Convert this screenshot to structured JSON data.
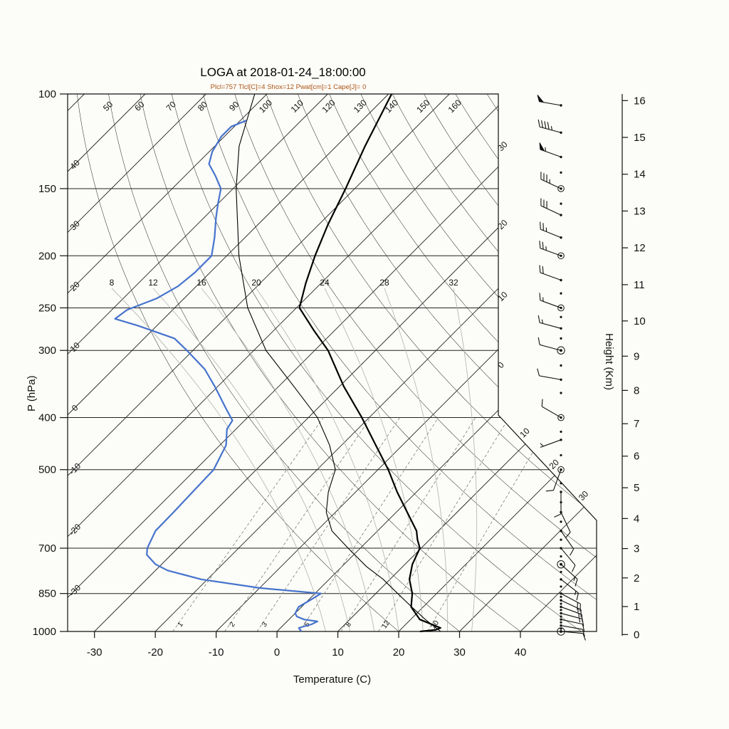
{
  "title": "LOGA at 2018-01-24_18:00:00",
  "subtitle": "Plcl=757 Tlcl[C]=4 Shox=12 Pwat[cm]=1 Cape[J]= 0",
  "colors": {
    "background": "#fcfcf8",
    "subtitle": "#ab5214",
    "temperature": "#000000",
    "dewpoint": "#4573cd",
    "parcel": "#000000",
    "isobar": "#222222",
    "isotherm": "#222222",
    "dry_adiabat": "#333333",
    "moist_adiabat": "#b8b8b8",
    "mixing_ratio": "#8a8a8a",
    "axis": "#111111"
  },
  "axes": {
    "pressure": {
      "label": "P (hPa)",
      "ticks": [
        100,
        150,
        200,
        250,
        300,
        400,
        500,
        700,
        850,
        1000
      ]
    },
    "temperature": {
      "label": "Temperature (C)",
      "ticks": [
        -30,
        -20,
        -10,
        0,
        10,
        20,
        30,
        40
      ]
    },
    "height": {
      "label": "Height (Km)",
      "ticks": [
        0,
        1,
        2,
        3,
        4,
        5,
        6,
        7,
        8,
        9,
        10,
        11,
        12,
        13,
        14,
        15,
        16
      ]
    }
  },
  "chart_data": {
    "type": "line",
    "chart_kind": "skew_t_log_p_sounding",
    "station": "LOGA",
    "valid_time": "2018-01-24_18:00:00",
    "indices": {
      "Plcl": 757,
      "Tlcl_C": 4,
      "Shox": 12,
      "Pwat_cm": 1,
      "Cape_J": 0
    },
    "x_axis": {
      "label": "Temperature (C)",
      "ticks": [
        -30,
        -20,
        -10,
        0,
        10,
        20,
        30,
        40
      ]
    },
    "y_axis": {
      "label": "P (hPa)",
      "scale": "log",
      "ticks": [
        100,
        150,
        200,
        250,
        300,
        400,
        500,
        700,
        850,
        1000
      ]
    },
    "height_axis_km": [
      0,
      1,
      2,
      3,
      4,
      5,
      6,
      7,
      8,
      9,
      10,
      11,
      12,
      13,
      14,
      15,
      16
    ],
    "background_labels": {
      "isotherms_left_c": [
        40,
        30,
        20,
        10,
        0,
        -10,
        -20,
        -30
      ],
      "isotherms_right_upper_c": [
        30,
        20,
        10,
        0
      ],
      "isotherms_right_lower_c": [
        10,
        20,
        30
      ],
      "dry_adiabats_top_c": [
        50,
        60,
        70,
        80,
        90,
        100,
        110,
        120,
        130,
        140,
        150,
        160
      ],
      "moist_adiabats_c": [
        8,
        12,
        16,
        20,
        24,
        28,
        32
      ],
      "mixing_ratio_gkg": [
        1,
        2,
        3,
        5,
        8,
        12,
        20
      ]
    },
    "series": [
      {
        "name": "temperature",
        "style": "thick_black",
        "points": [
          [
            1000,
            23.5
          ],
          [
            993,
            25.8
          ],
          [
            985,
            26.3
          ],
          [
            950,
            21.5
          ],
          [
            900,
            18
          ],
          [
            850,
            16
          ],
          [
            800,
            13.2
          ],
          [
            750,
            11.2
          ],
          [
            700,
            9.8
          ],
          [
            675,
            8
          ],
          [
            650,
            6.4
          ],
          [
            600,
            1.8
          ],
          [
            550,
            -3.2
          ],
          [
            500,
            -8.3
          ],
          [
            450,
            -14.4
          ],
          [
            400,
            -21.2
          ],
          [
            350,
            -29.3
          ],
          [
            300,
            -37.8
          ],
          [
            275,
            -43.5
          ],
          [
            250,
            -49.5
          ],
          [
            225,
            -52.5
          ],
          [
            200,
            -55.5
          ],
          [
            175,
            -58.5
          ],
          [
            150,
            -61.5
          ],
          [
            125,
            -65.3
          ],
          [
            100,
            -69.5
          ]
        ]
      },
      {
        "name": "dewpoint",
        "style": "thick_blue",
        "points": [
          [
            1000,
            4
          ],
          [
            985,
            3
          ],
          [
            970,
            4.5
          ],
          [
            958,
            5
          ],
          [
            950,
            2.5
          ],
          [
            938,
            0.8
          ],
          [
            925,
            0
          ],
          [
            900,
            -0.5
          ],
          [
            875,
            0.3
          ],
          [
            850,
            1
          ],
          [
            830,
            -10
          ],
          [
            800,
            -21
          ],
          [
            770,
            -28
          ],
          [
            750,
            -31
          ],
          [
            720,
            -34
          ],
          [
            700,
            -35
          ],
          [
            650,
            -36.5
          ],
          [
            600,
            -36.6
          ],
          [
            550,
            -36.8
          ],
          [
            500,
            -37
          ],
          [
            450,
            -39
          ],
          [
            420,
            -41.5
          ],
          [
            405,
            -42
          ],
          [
            385,
            -45
          ],
          [
            350,
            -50.5
          ],
          [
            325,
            -55
          ],
          [
            300,
            -61
          ],
          [
            285,
            -65
          ],
          [
            270,
            -73
          ],
          [
            262,
            -78
          ],
          [
            252,
            -77.5
          ],
          [
            240,
            -74.5
          ],
          [
            228,
            -73
          ],
          [
            215,
            -72.5
          ],
          [
            200,
            -72.5
          ],
          [
            185,
            -75
          ],
          [
            170,
            -78
          ],
          [
            160,
            -80
          ],
          [
            150,
            -82
          ],
          [
            142,
            -85
          ],
          [
            135,
            -88
          ],
          [
            128,
            -89.5
          ],
          [
            120,
            -90.5
          ],
          [
            115,
            -90.5
          ],
          [
            112,
            -89
          ]
        ]
      },
      {
        "name": "parcel",
        "style": "thin_black",
        "points": [
          [
            1000,
            26.9
          ],
          [
            950,
            22.4
          ],
          [
            900,
            18.1
          ],
          [
            850,
            13.6
          ],
          [
            800,
            8.9
          ],
          [
            757,
            4
          ],
          [
            700,
            -2
          ],
          [
            650,
            -7.5
          ],
          [
            600,
            -11.5
          ],
          [
            550,
            -14.5
          ],
          [
            500,
            -17
          ],
          [
            450,
            -22
          ],
          [
            400,
            -28.5
          ],
          [
            350,
            -37.5
          ],
          [
            300,
            -48
          ],
          [
            250,
            -58
          ],
          [
            200,
            -68
          ],
          [
            150,
            -79.5
          ],
          [
            125,
            -86
          ],
          [
            100,
            -92
          ]
        ]
      }
    ],
    "wind_barbs": [
      [
        105,
        50,
        280
      ],
      [
        118,
        45,
        285
      ],
      [
        131,
        55,
        290
      ],
      [
        150,
        35,
        295
      ],
      [
        168,
        30,
        295
      ],
      [
        185,
        25,
        292
      ],
      [
        200,
        25,
        290
      ],
      [
        222,
        20,
        290
      ],
      [
        250,
        15,
        290
      ],
      [
        273,
        15,
        285
      ],
      [
        300,
        10,
        285
      ],
      [
        340,
        10,
        280
      ],
      [
        400,
        10,
        300
      ],
      [
        440,
        5,
        250
      ],
      [
        500,
        10,
        200
      ],
      [
        550,
        10,
        180
      ],
      [
        600,
        10,
        155
      ],
      [
        650,
        10,
        145
      ],
      [
        700,
        10,
        140
      ],
      [
        750,
        15,
        132
      ],
      [
        800,
        15,
        128
      ],
      [
        850,
        20,
        118
      ],
      [
        875,
        15,
        115
      ],
      [
        900,
        15,
        110
      ],
      [
        925,
        15,
        105
      ],
      [
        950,
        10,
        102
      ],
      [
        975,
        10,
        100
      ],
      [
        1000,
        10,
        95
      ]
    ],
    "station_circle_levels_hpa": [
      150,
      200,
      250,
      400,
      500
    ],
    "station_double_circle_levels_hpa": [
      300,
      750,
      1000
    ],
    "minor_level_dots_hpa": [
      140,
      160,
      235,
      260,
      285,
      320,
      360,
      425,
      470,
      530,
      575,
      625,
      675,
      725,
      775,
      825,
      862,
      888,
      912,
      938,
      962,
      988
    ]
  }
}
